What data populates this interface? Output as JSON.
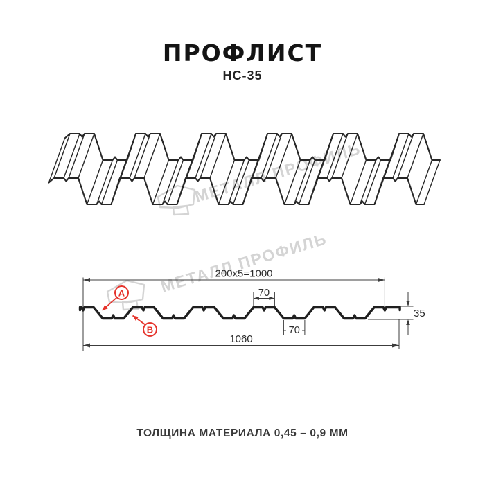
{
  "page_title": "ПРОФЛИСТ",
  "product_code": "НС-35",
  "watermark_text": "МЕТАЛЛ ПРОФИЛЬ",
  "cross_section": {
    "dim_working_width": "200x5=1000",
    "dim_top_flange": "70",
    "dim_bottom_flange": "70",
    "dim_height": "35",
    "dim_overall_width": "1060",
    "label_a": "А",
    "label_b": "В"
  },
  "footer_note": "ТОЛЩИНА МАТЕРИАЛА 0,45 – 0,9 ММ",
  "colors": {
    "annotation_red": "#e5332b",
    "drawing_black": "#1f1f1f",
    "watermark_gray": "#d4d4d4"
  }
}
